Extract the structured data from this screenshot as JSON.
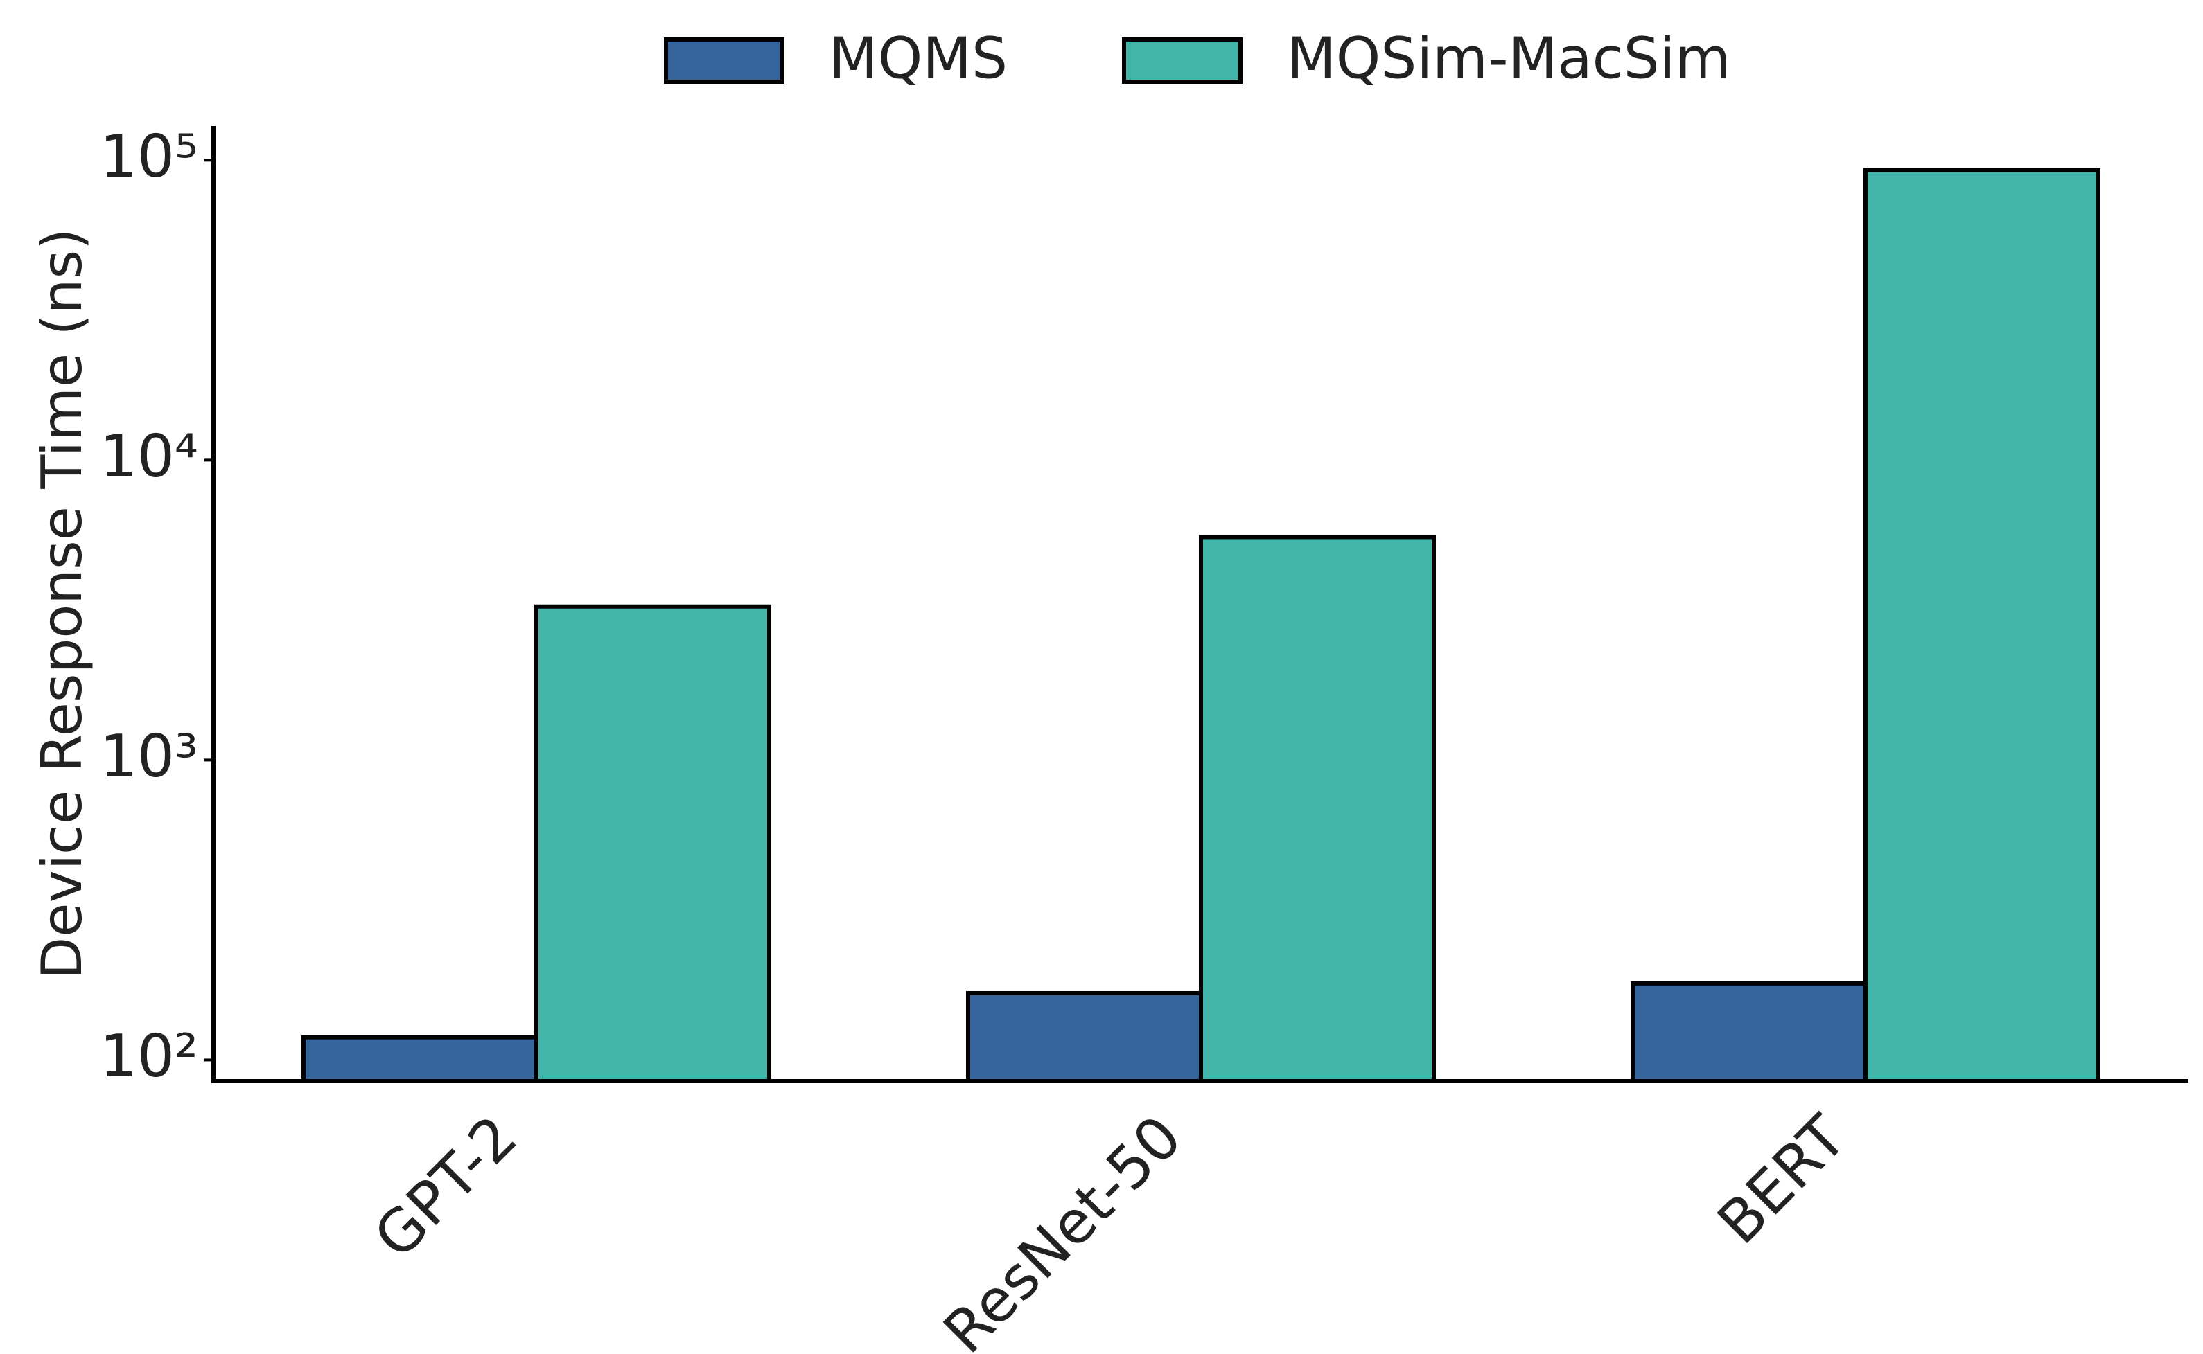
{
  "chart_data": {
    "type": "bar",
    "categories": [
      "GPT-2",
      "ResNet-50",
      "BERT"
    ],
    "series": [
      {
        "name": "MQMS",
        "color": "#36659e",
        "values": [
          119,
          167,
          180
        ]
      },
      {
        "name": "MQSim-MacSim",
        "color": "#42b5ab",
        "values": [
          3250,
          5540,
          92700
        ]
      }
    ],
    "y_label": "Device Response Time (ns)",
    "yscale": "log",
    "ylim": [
      85,
      130000
    ],
    "yticks": [
      {
        "value": 100,
        "label": "10²"
      },
      {
        "value": 1000,
        "label": "10³"
      },
      {
        "value": 10000,
        "label": "10⁴"
      },
      {
        "value": 100000,
        "label": "10⁵"
      }
    ],
    "legend": "top"
  }
}
